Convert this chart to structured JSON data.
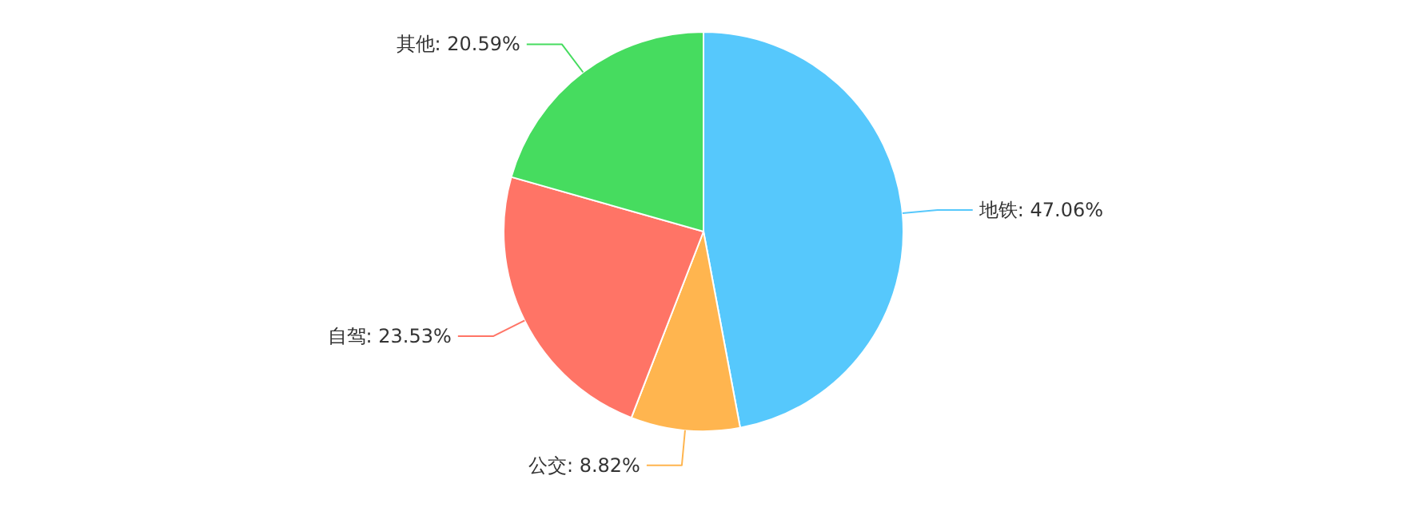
{
  "chart_data": {
    "type": "pie",
    "categories": [
      "地铁",
      "公交",
      "自驾",
      "其他"
    ],
    "values": [
      47.06,
      8.82,
      23.53,
      20.59
    ],
    "value_labels": [
      "47.06%",
      "8.82%",
      "23.53%",
      "20.59%"
    ],
    "colors": [
      "#56c8fc",
      "#ffb54f",
      "#ff7466",
      "#46dc5f"
    ]
  }
}
